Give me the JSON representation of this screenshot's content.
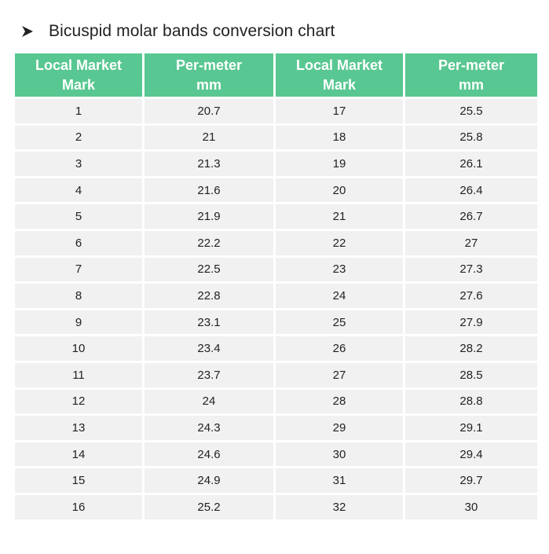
{
  "heading": {
    "bullet_icon": "arrowhead-bullet-icon",
    "title": "Bicuspid molar bands conversion chart"
  },
  "table": {
    "headers": [
      {
        "line1": "Local Market",
        "line2": "Mark"
      },
      {
        "line1": "Per-meter",
        "line2": "mm"
      },
      {
        "line1": "Local Market",
        "line2": "Mark"
      },
      {
        "line1": "Per-meter",
        "line2": "mm"
      }
    ],
    "rows": [
      [
        "1",
        "20.7",
        "17",
        "25.5"
      ],
      [
        "2",
        "21",
        "18",
        "25.8"
      ],
      [
        "3",
        "21.3",
        "19",
        "26.1"
      ],
      [
        "4",
        "21.6",
        "20",
        "26.4"
      ],
      [
        "5",
        "21.9",
        "21",
        "26.7"
      ],
      [
        "6",
        "22.2",
        "22",
        "27"
      ],
      [
        "7",
        "22.5",
        "23",
        "27.3"
      ],
      [
        "8",
        "22.8",
        "24",
        "27.6"
      ],
      [
        "9",
        "23.1",
        "25",
        "27.9"
      ],
      [
        "10",
        "23.4",
        "26",
        "28.2"
      ],
      [
        "11",
        "23.7",
        "27",
        "28.5"
      ],
      [
        "12",
        "24",
        "28",
        "28.8"
      ],
      [
        "13",
        "24.3",
        "29",
        "29.1"
      ],
      [
        "14",
        "24.6",
        "30",
        "29.4"
      ],
      [
        "15",
        "24.9",
        "31",
        "29.7"
      ],
      [
        "16",
        "25.2",
        "32",
        "30"
      ]
    ]
  },
  "colors": {
    "header_bg": "#58c791",
    "header_text": "#ffffff",
    "cell_bg": "#f1f1f1",
    "text": "#222222"
  }
}
